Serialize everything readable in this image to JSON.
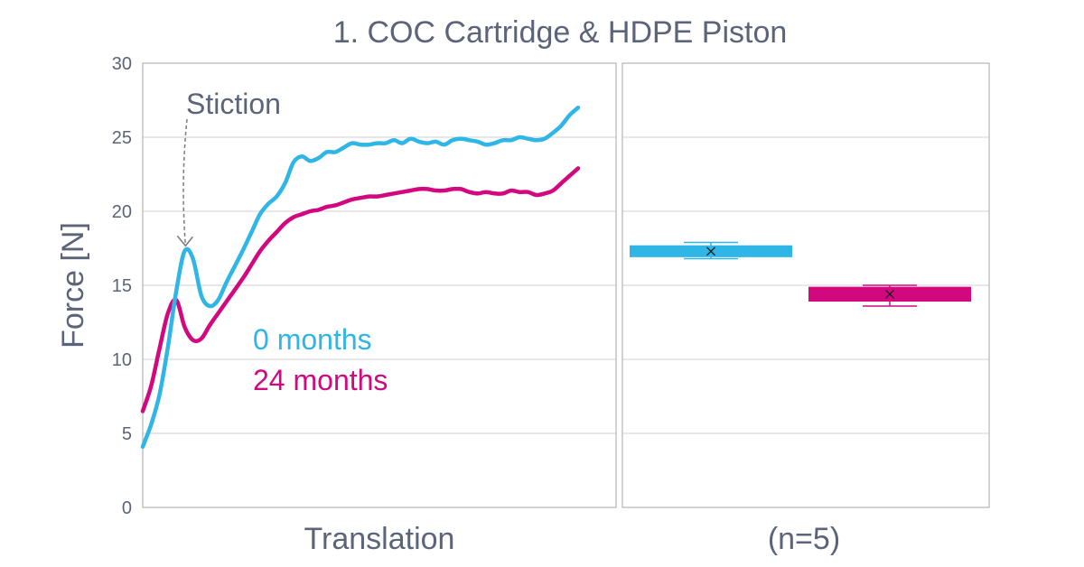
{
  "chart_data": {
    "title": "1. COC Cartridge & HDPE Piston",
    "ylabel": "Force [N]",
    "ylim": [
      0,
      30
    ],
    "yticks": [
      0,
      5,
      10,
      15,
      20,
      25,
      30
    ],
    "grid": true,
    "colors": {
      "months0": "#2fb5e6",
      "months24": "#d2087f",
      "text": "#5b6478"
    },
    "panels": [
      {
        "type": "line",
        "xlabel": "Translation",
        "annotation": "Stiction",
        "series": [
          {
            "name": "0 months",
            "values": [
              4.1,
              5.6,
              7.6,
              10.8,
              14.6,
              17.3,
              16.8,
              14.3,
              13.6,
              14.0,
              15.2,
              16.3,
              17.4,
              18.6,
              19.8,
              20.5,
              21.0,
              21.9,
              23.3,
              23.7,
              23.4,
              23.6,
              24.0,
              24.0,
              24.3,
              24.6,
              24.5,
              24.5,
              24.6,
              24.6,
              24.8,
              24.6,
              24.9,
              24.7,
              24.6,
              24.7,
              24.5,
              24.8,
              24.9,
              24.8,
              24.7,
              24.5,
              24.6,
              24.8,
              24.8,
              25.0,
              24.9,
              24.8,
              24.9,
              25.3,
              25.8,
              26.5,
              27.0
            ]
          },
          {
            "name": "24 months",
            "values": [
              6.5,
              8.2,
              10.7,
              13.1,
              14.0,
              12.2,
              11.3,
              11.4,
              12.3,
              13.1,
              13.9,
              14.7,
              15.5,
              16.4,
              17.3,
              18.0,
              18.6,
              19.2,
              19.6,
              19.8,
              20.0,
              20.1,
              20.3,
              20.4,
              20.6,
              20.8,
              20.9,
              21.0,
              21.0,
              21.1,
              21.2,
              21.3,
              21.4,
              21.5,
              21.5,
              21.4,
              21.4,
              21.5,
              21.5,
              21.3,
              21.2,
              21.3,
              21.2,
              21.2,
              21.4,
              21.3,
              21.3,
              21.1,
              21.2,
              21.4,
              21.9,
              22.4,
              22.9
            ]
          }
        ]
      },
      {
        "type": "box",
        "xlabel": "(n=5)",
        "boxes": [
          {
            "name": "0 months",
            "q1": 16.9,
            "q3": 17.7,
            "median": 17.3,
            "mean": 17.3,
            "min": 16.8,
            "max": 17.9
          },
          {
            "name": "24 months",
            "q1": 13.9,
            "q3": 14.9,
            "median": 14.4,
            "mean": 14.4,
            "min": 13.6,
            "max": 15.0
          }
        ]
      }
    ]
  }
}
